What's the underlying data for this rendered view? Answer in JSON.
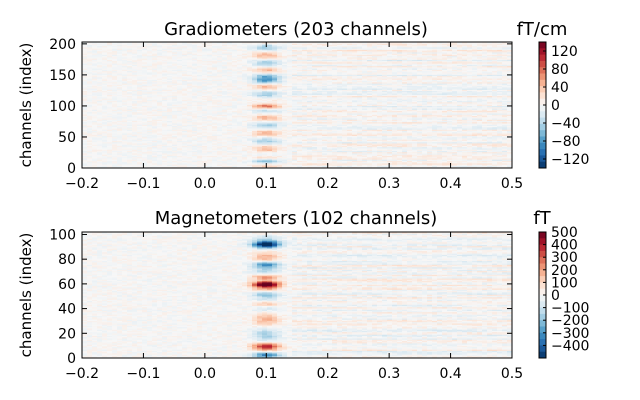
{
  "chart_data": [
    {
      "type": "heatmap",
      "title": "Gradiometers (203 channels)",
      "ylabel": "channels (index)",
      "xlabel": "",
      "xlim": [
        -0.2,
        0.5
      ],
      "ylim": [
        0,
        203
      ],
      "xticks": [
        "-0.2",
        "-0.1",
        "0.0",
        "0.1",
        "0.2",
        "0.3",
        "0.4",
        "0.5"
      ],
      "yticks": [
        "0",
        "50",
        "100",
        "150",
        "200"
      ],
      "ytick_values": [
        0,
        50,
        100,
        150,
        200
      ],
      "colorbar": {
        "unit": "fT/cm",
        "range": [
          -140,
          140
        ],
        "ticks": [
          "120",
          "80",
          "40",
          "0",
          "−40",
          "−80",
          "−120"
        ],
        "tick_values": [
          120,
          80,
          40,
          0,
          -40,
          -80,
          -120
        ]
      },
      "colormap": "RdBu_r",
      "features": [
        {
          "channel": 12,
          "time": 0.095,
          "value": -130
        },
        {
          "channel": 16,
          "time": 0.095,
          "value": 120
        },
        {
          "channel": 100,
          "time": 0.1,
          "value": 110
        },
        {
          "channel": 105,
          "time": 0.1,
          "value": -70
        },
        {
          "channel": 140,
          "time": 0.1,
          "value": -50
        },
        {
          "channel": 150,
          "time": 0.09,
          "value": -45
        }
      ]
    },
    {
      "type": "heatmap",
      "title": "Magnetometers (102 channels)",
      "ylabel": "channels (index)",
      "xlabel": "",
      "xlim": [
        -0.2,
        0.5
      ],
      "ylim": [
        0,
        102
      ],
      "xticks": [
        "-0.2",
        "-0.1",
        "0.0",
        "0.1",
        "0.2",
        "0.3",
        "0.4",
        "0.5"
      ],
      "yticks": [
        "0",
        "20",
        "40",
        "60",
        "80",
        "100"
      ],
      "ytick_values": [
        0,
        20,
        40,
        60,
        80,
        100
      ],
      "colorbar": {
        "unit": "fT",
        "range": [
          -500,
          500
        ],
        "ticks": [
          "500",
          "400",
          "300",
          "200",
          "100",
          "0",
          "−100",
          "−200",
          "−300",
          "−400"
        ],
        "tick_values": [
          500,
          400,
          300,
          200,
          100,
          0,
          -100,
          -200,
          -300,
          -400
        ]
      },
      "colormap": "RdBu_r",
      "features": [
        {
          "channel": 3,
          "time": 0.095,
          "value": -460
        },
        {
          "channel": 10,
          "time": 0.095,
          "value": 300
        },
        {
          "channel": 44,
          "time": 0.1,
          "value": 300
        },
        {
          "channel": 52,
          "time": 0.1,
          "value": -280
        },
        {
          "channel": 60,
          "time": 0.1,
          "value": 480
        },
        {
          "channel": 66,
          "time": 0.1,
          "value": 350
        },
        {
          "channel": 76,
          "time": 0.1,
          "value": -350
        },
        {
          "channel": 92,
          "time": 0.1,
          "value": -450
        }
      ]
    }
  ]
}
